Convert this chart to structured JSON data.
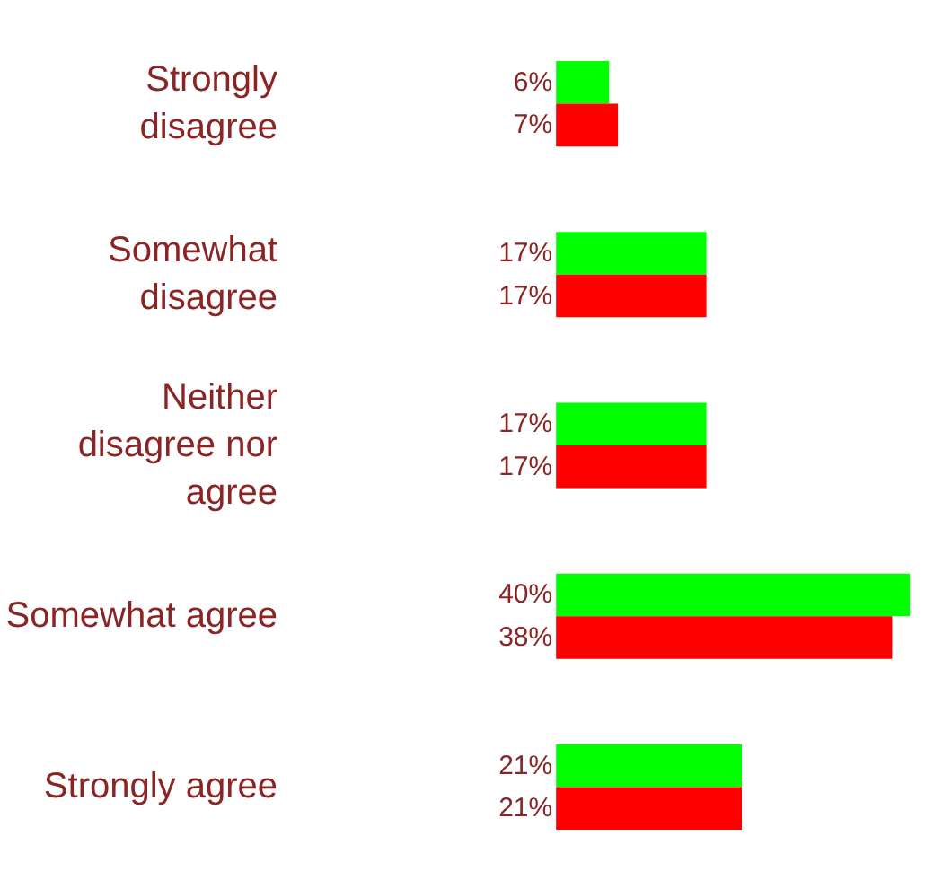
{
  "chart_data": {
    "type": "bar",
    "orientation": "horizontal",
    "categories": [
      "Strongly disagree",
      "Somewhat disagree",
      "Neither disagree nor agree",
      "Somewhat agree",
      "Strongly agree"
    ],
    "series": [
      {
        "color": "#00ff00",
        "values": [
          6,
          17,
          17,
          40,
          21
        ],
        "value_labels": [
          "6%",
          "17%",
          "17%",
          "40%",
          "21%"
        ]
      },
      {
        "color": "#ff0000",
        "values": [
          7,
          17,
          17,
          38,
          21
        ],
        "value_labels": [
          "7%",
          "17%",
          "17%",
          "38%",
          "21%"
        ]
      }
    ]
  }
}
